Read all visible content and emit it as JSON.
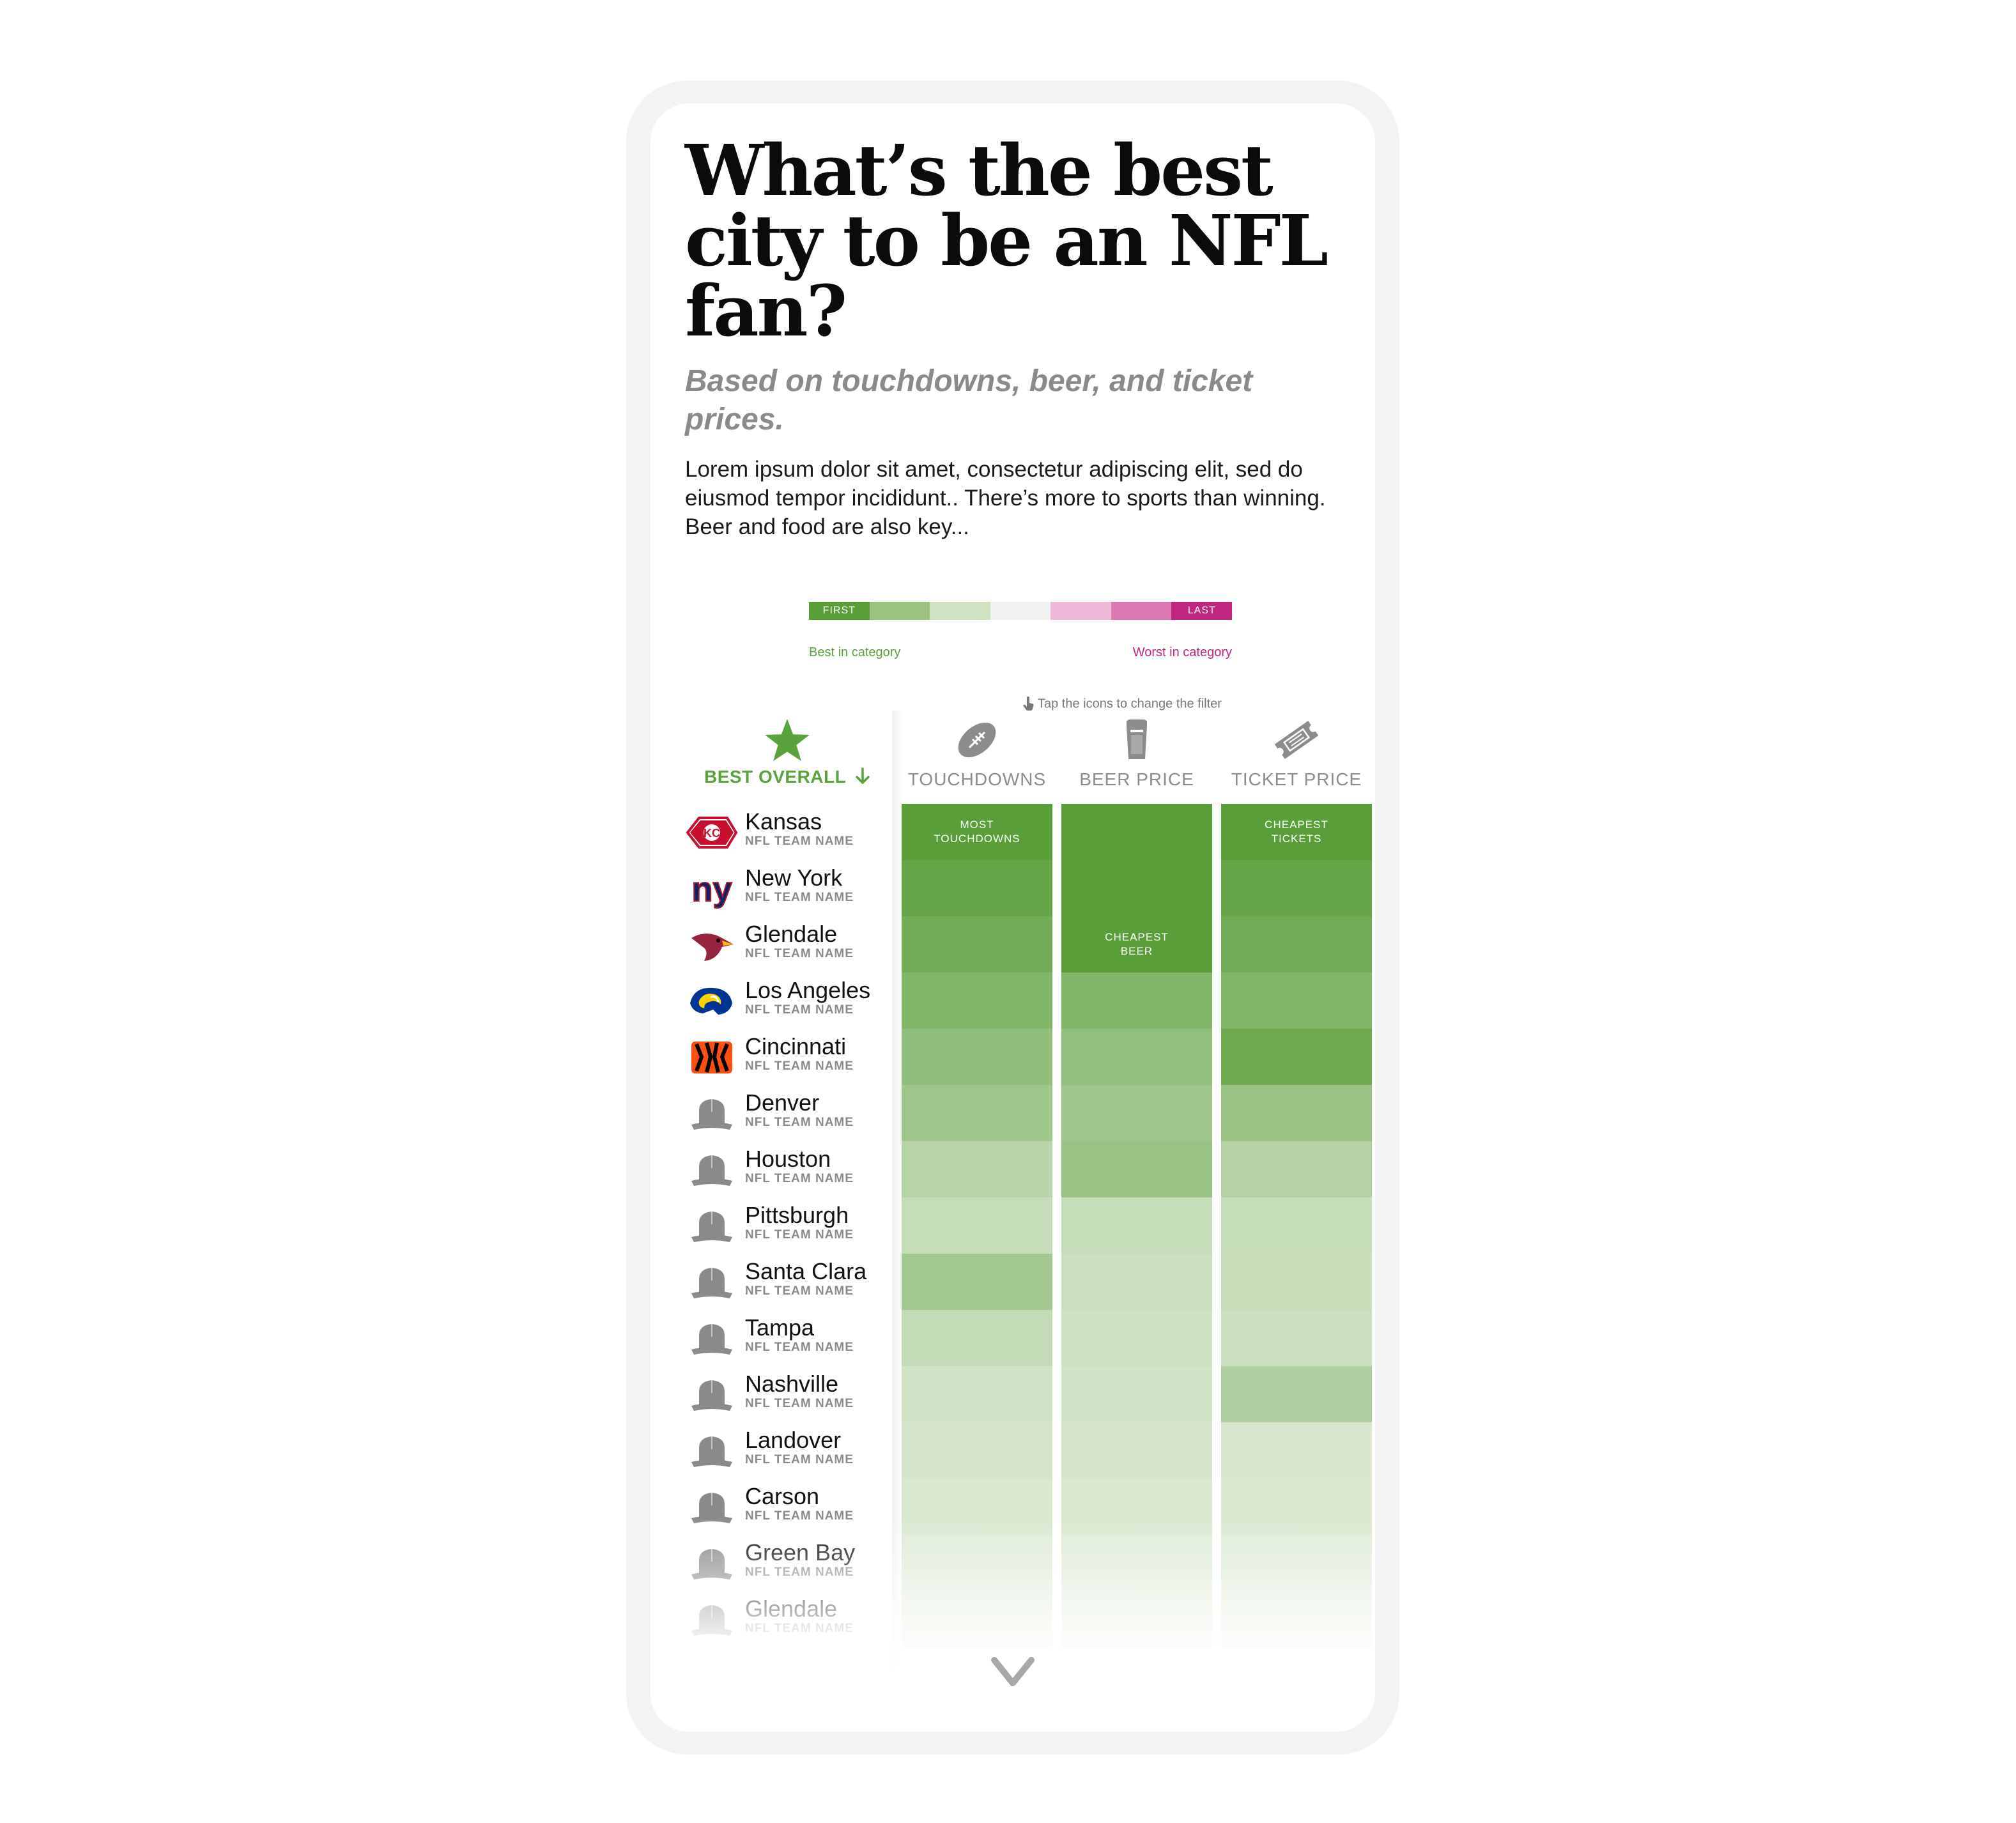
{
  "title": "What’s the best city to be an NFL fan?",
  "subtitle": "Based on touchdowns, beer, and ticket prices.",
  "intro": "Lorem ipsum dolor sit amet, consectetur adipiscing elit, sed do eiusmod tempor incididunt.. There’s more to sports than winning. Beer and food are also key...",
  "legend": {
    "first_label": "FIRST",
    "last_label": "LAST",
    "best_caption": "Best in category",
    "worst_caption": "Worst in category",
    "scale_colors": [
      "#5a9e3a",
      "#9cc27f",
      "#cfe2c1",
      "#f1f1f1",
      "#efb9d9",
      "#dd77b2",
      "#c2257f"
    ]
  },
  "hint": "Tap the icons to change the filter",
  "best_overall": {
    "label": "BEST OVERALL",
    "icon": "star-icon",
    "sort_icon": "arrow-down-icon",
    "color": "#5aa23d"
  },
  "columns": [
    {
      "label": "TOUCHDOWNS",
      "icon": "football-icon"
    },
    {
      "label": "BEER PRICE",
      "icon": "beer-icon"
    },
    {
      "label": "TICKET PRICE",
      "icon": "ticket-icon"
    }
  ],
  "team_subtitle": "NFL TEAM NAME",
  "teams": [
    {
      "city": "Kansas",
      "logo": "chiefs-logo-icon",
      "scores": [
        1.0,
        1.0,
        1.0
      ]
    },
    {
      "city": "New York",
      "logo": "giants-logo-icon",
      "scores": [
        0.93,
        1.0,
        0.92
      ]
    },
    {
      "city": "Glendale",
      "logo": "cardinals-logo-icon",
      "scores": [
        0.85,
        1.0,
        0.85
      ]
    },
    {
      "city": "Los Angeles",
      "logo": "rams-logo-icon",
      "scores": [
        0.74,
        0.74,
        0.74
      ]
    },
    {
      "city": "Cincinnati",
      "logo": "bengals-logo-icon",
      "scores": [
        0.63,
        0.62,
        0.86
      ]
    },
    {
      "city": "Denver",
      "logo": "generic-team-logo-icon",
      "scores": [
        0.55,
        0.55,
        0.57
      ]
    },
    {
      "city": "Houston",
      "logo": "generic-team-logo-icon",
      "scores": [
        0.38,
        0.58,
        0.4
      ]
    },
    {
      "city": "Pittsburgh",
      "logo": "generic-team-logo-icon",
      "scores": [
        0.28,
        0.28,
        0.28
      ]
    },
    {
      "city": "Santa Clara",
      "logo": "generic-team-logo-icon",
      "scores": [
        0.52,
        0.25,
        0.27
      ]
    },
    {
      "city": "Tampa",
      "logo": "generic-team-logo-icon",
      "scores": [
        0.3,
        0.23,
        0.24
      ]
    },
    {
      "city": "Nashville",
      "logo": "generic-team-logo-icon",
      "scores": [
        0.2,
        0.2,
        0.42
      ]
    },
    {
      "city": "Landover",
      "logo": "generic-team-logo-icon",
      "scores": [
        0.18,
        0.18,
        0.17
      ]
    },
    {
      "city": "Carson",
      "logo": "generic-team-logo-icon",
      "scores": [
        0.15,
        0.15,
        0.15
      ]
    },
    {
      "city": "Green Bay",
      "logo": "generic-team-logo-icon",
      "scores": [
        0.12,
        0.12,
        0.12
      ]
    },
    {
      "city": "Glendale",
      "logo": "generic-team-logo-icon",
      "scores": [
        0.1,
        0.1,
        0.1
      ]
    }
  ],
  "top_labels": [
    {
      "column": 0,
      "row": 0,
      "text": "MOST\nTOUCHDOWNS"
    },
    {
      "column": 1,
      "row": 2,
      "text": "CHEAPEST\nBEER"
    },
    {
      "column": 2,
      "row": 0,
      "text": "CHEAPEST\nTICKETS"
    }
  ],
  "scroll_icon": "chevron-down-icon"
}
